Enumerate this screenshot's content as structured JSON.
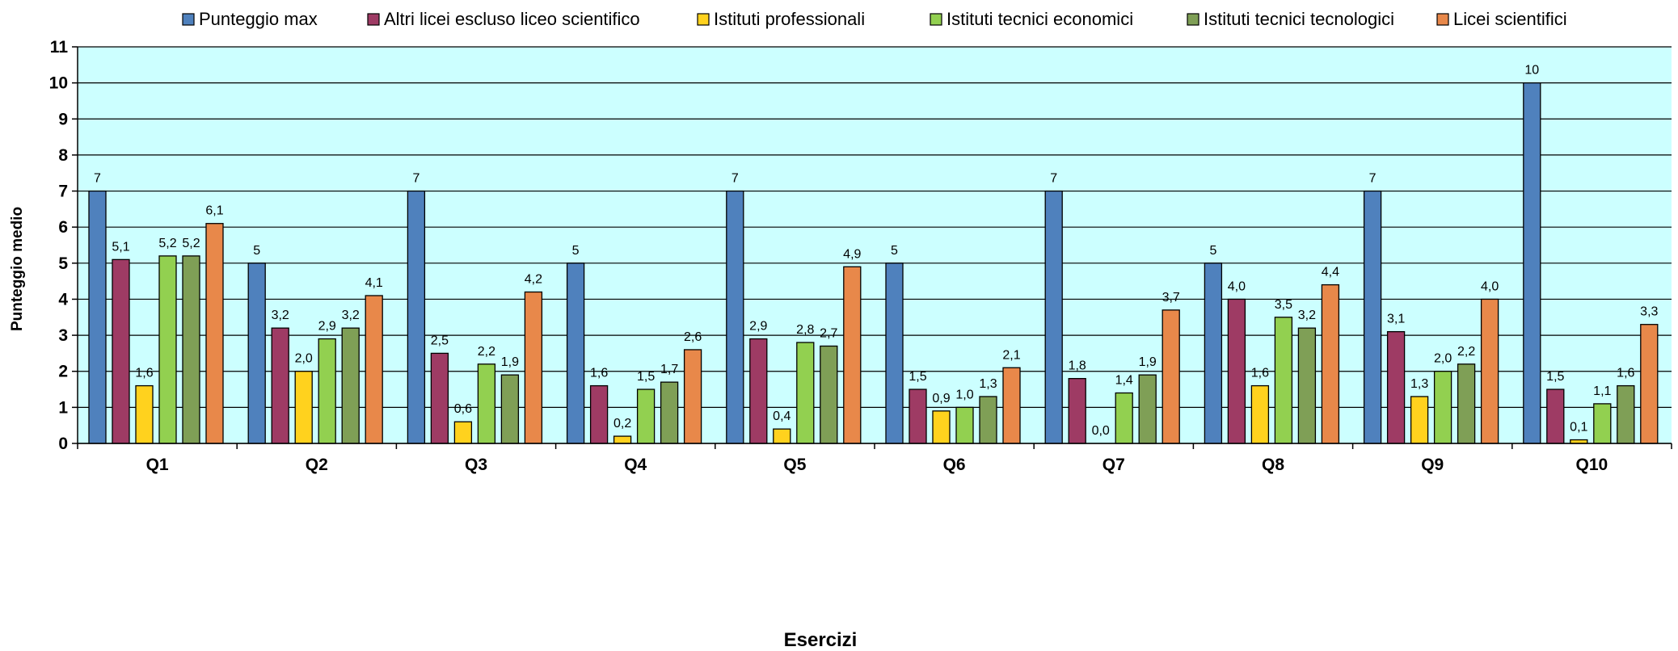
{
  "chart_data": {
    "type": "bar",
    "xlabel": "Esercizi",
    "ylabel": "Punteggio medio",
    "ylim": [
      0,
      11
    ],
    "yticks": [
      0,
      1,
      2,
      3,
      4,
      5,
      6,
      7,
      8,
      9,
      10,
      11
    ],
    "grid": true,
    "legend_position": "top",
    "categories": [
      "Q1",
      "Q2",
      "Q3",
      "Q4",
      "Q5",
      "Q6",
      "Q7",
      "Q8",
      "Q9",
      "Q10"
    ],
    "series": [
      {
        "name": "Punteggio max",
        "color": "#4F81BD",
        "values": [
          7,
          5,
          7,
          5,
          7,
          5,
          7,
          5,
          7,
          10
        ],
        "labels": [
          "7",
          "5",
          "7",
          "5",
          "7",
          "5",
          "7",
          "5",
          "7",
          "10"
        ]
      },
      {
        "name": "Altri licei escluso liceo scientifico",
        "color": "#9E3B64",
        "values": [
          5.1,
          3.2,
          2.5,
          1.6,
          2.9,
          1.5,
          1.8,
          4.0,
          3.1,
          1.5
        ],
        "labels": [
          "5,1",
          "3,2",
          "2,5",
          "1,6",
          "2,9",
          "1,5",
          "1,8",
          "4,0",
          "3,1",
          "1,5"
        ]
      },
      {
        "name": "Istituti professionali",
        "color": "#FFD21E",
        "values": [
          1.6,
          2.0,
          0.6,
          0.2,
          0.4,
          0.9,
          0.0,
          1.6,
          1.3,
          0.1
        ],
        "labels": [
          "1,6",
          "2,0",
          "0,6",
          "0,2",
          "0,4",
          "0,9",
          "0,0",
          "1,6",
          "1,3",
          "0,1"
        ]
      },
      {
        "name": "Istituti tecnici economici",
        "color": "#92D050",
        "values": [
          5.2,
          2.9,
          2.2,
          1.5,
          2.8,
          1.0,
          1.4,
          3.5,
          2.0,
          1.1
        ],
        "labels": [
          "5,2",
          "2,9",
          "2,2",
          "1,5",
          "2,8",
          "1,0",
          "1,4",
          "3,5",
          "2,0",
          "1,1"
        ]
      },
      {
        "name": "Istituti tecnici tecnologici",
        "color": "#7F9F56",
        "values": [
          5.2,
          3.2,
          1.9,
          1.7,
          2.7,
          1.3,
          1.9,
          3.2,
          2.2,
          1.6
        ],
        "labels": [
          "5,2",
          "3,2",
          "1,9",
          "1,7",
          "2,7",
          "1,3",
          "1,9",
          "3,2",
          "2,2",
          "1,6"
        ]
      },
      {
        "name": "Licei scientifici",
        "color": "#E8884A",
        "values": [
          6.1,
          4.1,
          4.2,
          2.6,
          4.9,
          2.1,
          3.7,
          4.4,
          4.0,
          3.3
        ],
        "labels": [
          "6,1",
          "4,1",
          "4,2",
          "2,6",
          "4,9",
          "2,1",
          "3,7",
          "4,4",
          "4,0",
          "3,3"
        ]
      }
    ],
    "plot_background": "#CCFFFF"
  }
}
